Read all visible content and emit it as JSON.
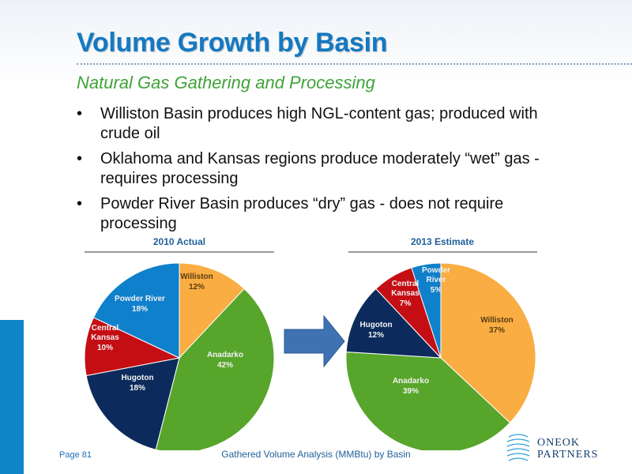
{
  "slide": {
    "title": "Volume Growth by Basin",
    "subtitle": "Natural Gas Gathering and Processing",
    "bullets": [
      "Williston Basin produces high NGL-content gas; produced with crude oil",
      "Oklahoma and Kansas regions produce moderately “wet” gas - requires processing",
      "Powder River Basin produces “dry” gas - does not require processing"
    ],
    "page_label": "Page 81",
    "caption": "Gathered Volume Analysis (MMBtu) by Basin",
    "logo": {
      "line1": "ONEOK",
      "line2": "PARTNERS",
      "icon": "oneok-logo-icon"
    }
  },
  "colors": {
    "title": "#1479c2",
    "subtitle": "#3fa33a",
    "accent_bar": "#0f85c8",
    "arrow": "#3f72b3"
  },
  "chart_data": [
    {
      "type": "pie",
      "title": "2010 Actual",
      "slices": [
        {
          "label": "Williston",
          "value": 12,
          "display": "12%",
          "color": "#f9ad42"
        },
        {
          "label": "Anadarko",
          "value": 42,
          "display": "42%",
          "color": "#57a52b"
        },
        {
          "label": "Hugoton",
          "value": 18,
          "display": "18%",
          "color": "#0c2b5c"
        },
        {
          "label": "Central Kansas",
          "value": 10,
          "display": "10%",
          "color": "#c40e14"
        },
        {
          "label": "Powder River",
          "value": 18,
          "display": "18%",
          "color": "#0f80cb"
        }
      ]
    },
    {
      "type": "pie",
      "title": "2013 Estimate",
      "slices": [
        {
          "label": "Williston",
          "value": 37,
          "display": "37%",
          "color": "#f9ad42"
        },
        {
          "label": "Anadarko",
          "value": 39,
          "display": "39%",
          "color": "#57a52b"
        },
        {
          "label": "Hugoton",
          "value": 12,
          "display": "12%",
          "color": "#0c2b5c"
        },
        {
          "label": "Central Kansas",
          "value": 7,
          "display": "7%",
          "color": "#c40e14"
        },
        {
          "label": "Powder River",
          "value": 5,
          "display": "5%",
          "color": "#0f80cb"
        }
      ]
    }
  ]
}
